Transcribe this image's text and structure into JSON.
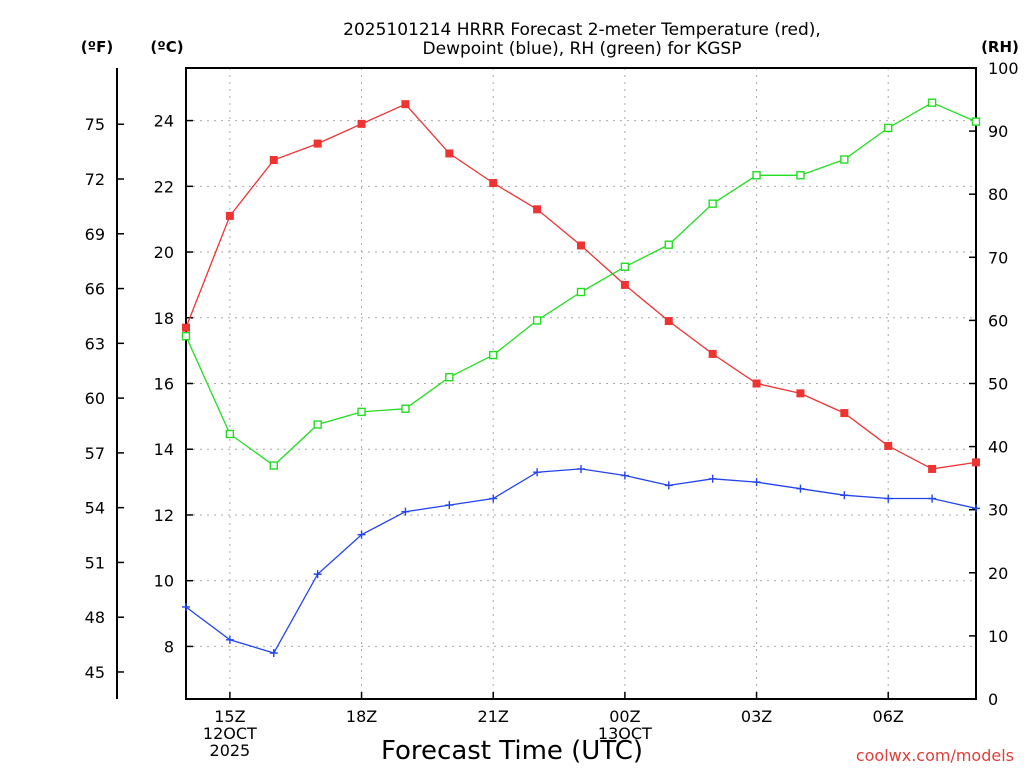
{
  "chart_data": {
    "type": "line",
    "title_lines": [
      "2025101214 HRRR Forecast 2-meter Temperature (red),",
      "Dewpoint (blue), RH (green) for KGSP"
    ],
    "xlabel": "Forecast Time (UTC)",
    "credit": "coolwx.com/models",
    "x_hours": [
      14,
      15,
      16,
      17,
      18,
      19,
      20,
      21,
      22,
      23,
      24,
      25,
      26,
      27,
      28,
      29,
      30,
      31,
      32
    ],
    "xlim": [
      14,
      32
    ],
    "x_ticks": [
      {
        "hour": 15,
        "lines": [
          "15Z",
          "12OCT",
          "2025"
        ]
      },
      {
        "hour": 18,
        "lines": [
          "18Z"
        ]
      },
      {
        "hour": 21,
        "lines": [
          "21Z"
        ]
      },
      {
        "hour": 24,
        "lines": [
          "00Z",
          "13OCT"
        ]
      },
      {
        "hour": 27,
        "lines": [
          "03Z"
        ]
      },
      {
        "hour": 30,
        "lines": [
          "06Z"
        ]
      }
    ],
    "celsius_axis": {
      "unit": "(ºC)",
      "ylim": [
        6.4,
        25.6
      ],
      "ticks": [
        8,
        10,
        12,
        14,
        16,
        18,
        20,
        22,
        24
      ]
    },
    "fahrenheit_axis": {
      "unit": "(ºF)",
      "ticks": [
        45,
        48,
        51,
        54,
        57,
        60,
        63,
        66,
        69,
        72,
        75
      ]
    },
    "rh_axis": {
      "unit": "(RH)",
      "ylim": [
        0,
        100
      ],
      "ticks": [
        0,
        10,
        20,
        30,
        40,
        50,
        60,
        70,
        80,
        90,
        100
      ]
    },
    "series": [
      {
        "name": "Temperature",
        "axis": "celsius",
        "color": "#ee3333",
        "marker": "square-filled",
        "values": [
          17.7,
          21.1,
          22.8,
          23.3,
          23.9,
          24.5,
          23.0,
          22.1,
          21.3,
          20.2,
          19.0,
          17.9,
          16.9,
          16.0,
          15.7,
          15.1,
          14.1,
          13.4,
          13.6
        ]
      },
      {
        "name": "Dewpoint",
        "axis": "celsius",
        "color": "#2244ee",
        "marker": "plus",
        "values": [
          9.2,
          8.2,
          7.8,
          10.2,
          11.4,
          12.1,
          12.3,
          12.5,
          13.3,
          13.4,
          13.2,
          12.9,
          13.1,
          13.0,
          12.8,
          12.6,
          12.5,
          12.5,
          12.2
        ]
      },
      {
        "name": "RH",
        "axis": "rh",
        "color": "#22dd22",
        "marker": "square-open",
        "values": [
          57.5,
          42.0,
          37.0,
          43.5,
          45.5,
          46.0,
          51.0,
          54.5,
          60.0,
          64.5,
          68.5,
          72.0,
          78.5,
          83.0,
          83.0,
          85.5,
          90.5,
          94.5,
          91.5
        ]
      }
    ]
  }
}
